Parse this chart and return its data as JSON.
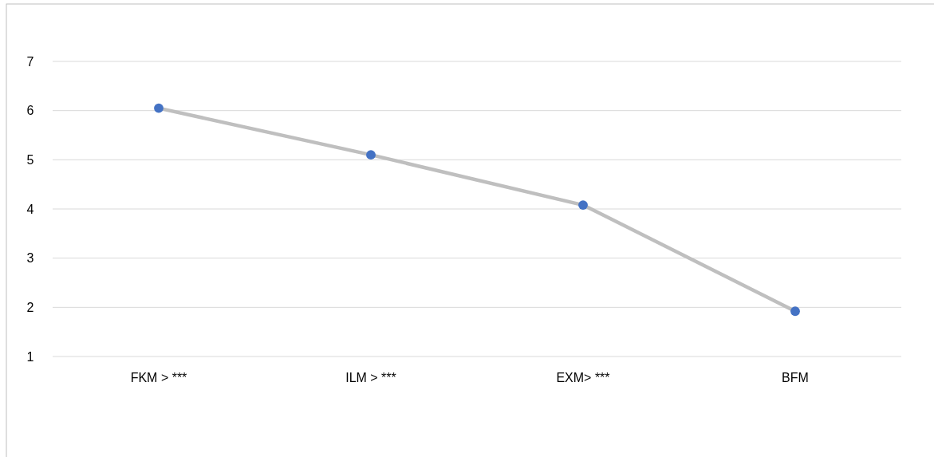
{
  "chart_data": {
    "type": "line",
    "categories": [
      "FKM > ***",
      "ILM > ***",
      "EXM> ***",
      "BFM"
    ],
    "series": [
      {
        "color": "#bfbfbf",
        "colors": [
          "#4472c4",
          "#4472c4",
          "#4472c4",
          "#4472c4"
        ],
        "values": [
          6.05,
          5.1,
          4.08,
          1.92
        ]
      }
    ],
    "marker": "circle",
    "ylim": [
      1,
      7
    ],
    "yticks": [
      1,
      2,
      3,
      4,
      5,
      6,
      7
    ],
    "grid": "y"
  }
}
